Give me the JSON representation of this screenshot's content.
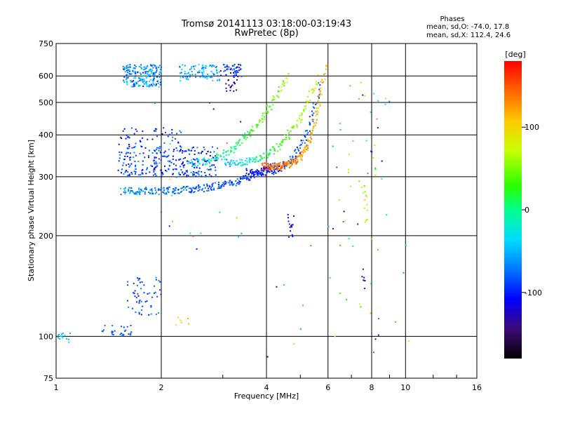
{
  "chart_data": {
    "type": "scatter",
    "title": "Tromsø 20141113 03:18:00-03:19:43",
    "subtitle": "RwPretec (8p)",
    "xlabel": "Frequency [MHz]",
    "ylabel": "Stationary phase Virtual Height [km]",
    "xscale": "log",
    "yscale": "log",
    "xlim": [
      1,
      16
    ],
    "ylim": [
      75,
      750
    ],
    "xticks": [
      1,
      2,
      4,
      6,
      8,
      10,
      16
    ],
    "xtick_labels": [
      "1",
      "2",
      "4",
      "6",
      "8",
      "10",
      "16"
    ],
    "yticks": [
      75,
      100,
      200,
      300,
      400,
      500,
      600,
      750
    ],
    "ytick_labels": [
      "75",
      "100",
      "200",
      "300",
      "400",
      "500",
      "600",
      "750"
    ],
    "grid": true,
    "colorbar": {
      "label": "[deg]",
      "range": [
        -180,
        180
      ],
      "tick_values": [
        100,
        0,
        -100
      ],
      "tick_labels": [
        "100",
        "0",
        "-100"
      ]
    },
    "stats": {
      "heading": "Phases",
      "o_line": "mean, sd,O: -74.0, 17.8",
      "x_line": "mean, sd,X: 112.4, 24.6"
    },
    "traces": [
      {
        "f_start": 1.55,
        "f_end": 4.2,
        "h_start": 272,
        "h_end": 325,
        "k": 3.5,
        "phase_start": -60,
        "phase_end": -100,
        "n": 260
      },
      {
        "f_start": 3.5,
        "f_end": 5.7,
        "h_start": 310,
        "h_end": 560,
        "k": 4.0,
        "phase_start": -110,
        "phase_end": -80,
        "n": 150
      },
      {
        "f_start": 3.9,
        "f_end": 5.9,
        "h_start": 322,
        "h_end": 640,
        "k": 4.5,
        "phase_start": 150,
        "phase_end": 110,
        "n": 190
      },
      {
        "f_start": 3.0,
        "f_end": 5.6,
        "h_start": 330,
        "h_end": 590,
        "k": 3.0,
        "phase_start": -50,
        "phase_end": 80,
        "n": 150
      },
      {
        "f_start": 2.4,
        "f_end": 4.6,
        "h_start": 330,
        "h_end": 600,
        "k": 2.2,
        "phase_start": -40,
        "phase_end": 60,
        "n": 150
      }
    ],
    "clusters": [
      {
        "f": [
          1.55,
          2.0
        ],
        "h": [
          555,
          650
        ],
        "n": 190,
        "phase": [
          -100,
          -30
        ]
      },
      {
        "f": [
          2.25,
          2.95
        ],
        "h": [
          580,
          650
        ],
        "n": 90,
        "phase": [
          -80,
          -30
        ]
      },
      {
        "f": [
          2.95,
          3.4
        ],
        "h": [
          595,
          655
        ],
        "n": 50,
        "phase": [
          -140,
          -60
        ]
      },
      {
        "f": [
          3.05,
          3.3
        ],
        "h": [
          540,
          585
        ],
        "n": 18,
        "phase": [
          -150,
          -120
        ]
      },
      {
        "f": [
          1.5,
          2.9
        ],
        "h": [
          300,
          370
        ],
        "n": 280,
        "phase": [
          -120,
          -60
        ]
      },
      {
        "f": [
          1.5,
          2.3
        ],
        "h": [
          370,
          420
        ],
        "n": 45,
        "phase": [
          -120,
          -70
        ]
      },
      {
        "f": [
          1.6,
          2.0
        ],
        "h": [
          115,
          150
        ],
        "n": 55,
        "phase": [
          -110,
          -60
        ]
      },
      {
        "f": [
          1.35,
          1.65
        ],
        "h": [
          100,
          108
        ],
        "n": 28,
        "phase": [
          -95,
          -65
        ]
      },
      {
        "f": [
          1.0,
          1.1
        ],
        "h": [
          96,
          105
        ],
        "n": 14,
        "phase": [
          -60,
          -30
        ]
      },
      {
        "f": [
          4.6,
          4.8
        ],
        "h": [
          195,
          235
        ],
        "n": 14,
        "phase": [
          -130,
          -95
        ]
      },
      {
        "f": [
          7.5,
          7.8
        ],
        "h": [
          210,
          290
        ],
        "n": 14,
        "phase": [
          50,
          115
        ]
      },
      {
        "f": [
          7.5,
          7.8
        ],
        "h": [
          145,
          160
        ],
        "n": 6,
        "phase": [
          -130,
          -110
        ]
      },
      {
        "f": [
          2.2,
          2.4
        ],
        "h": [
          108,
          115
        ],
        "n": 6,
        "phase": [
          90,
          120
        ]
      },
      {
        "f": [
          6.0,
          9.0
        ],
        "h": [
          180,
          600
        ],
        "n": 45,
        "phase": [
          -150,
          150
        ]
      },
      {
        "f": [
          4.0,
          10.5
        ],
        "h": [
          80,
          190
        ],
        "n": 26,
        "phase": [
          -150,
          150
        ]
      },
      {
        "f": [
          1.9,
          3.5
        ],
        "h": [
          160,
          500
        ],
        "n": 24,
        "phase": [
          -150,
          150
        ]
      }
    ]
  }
}
